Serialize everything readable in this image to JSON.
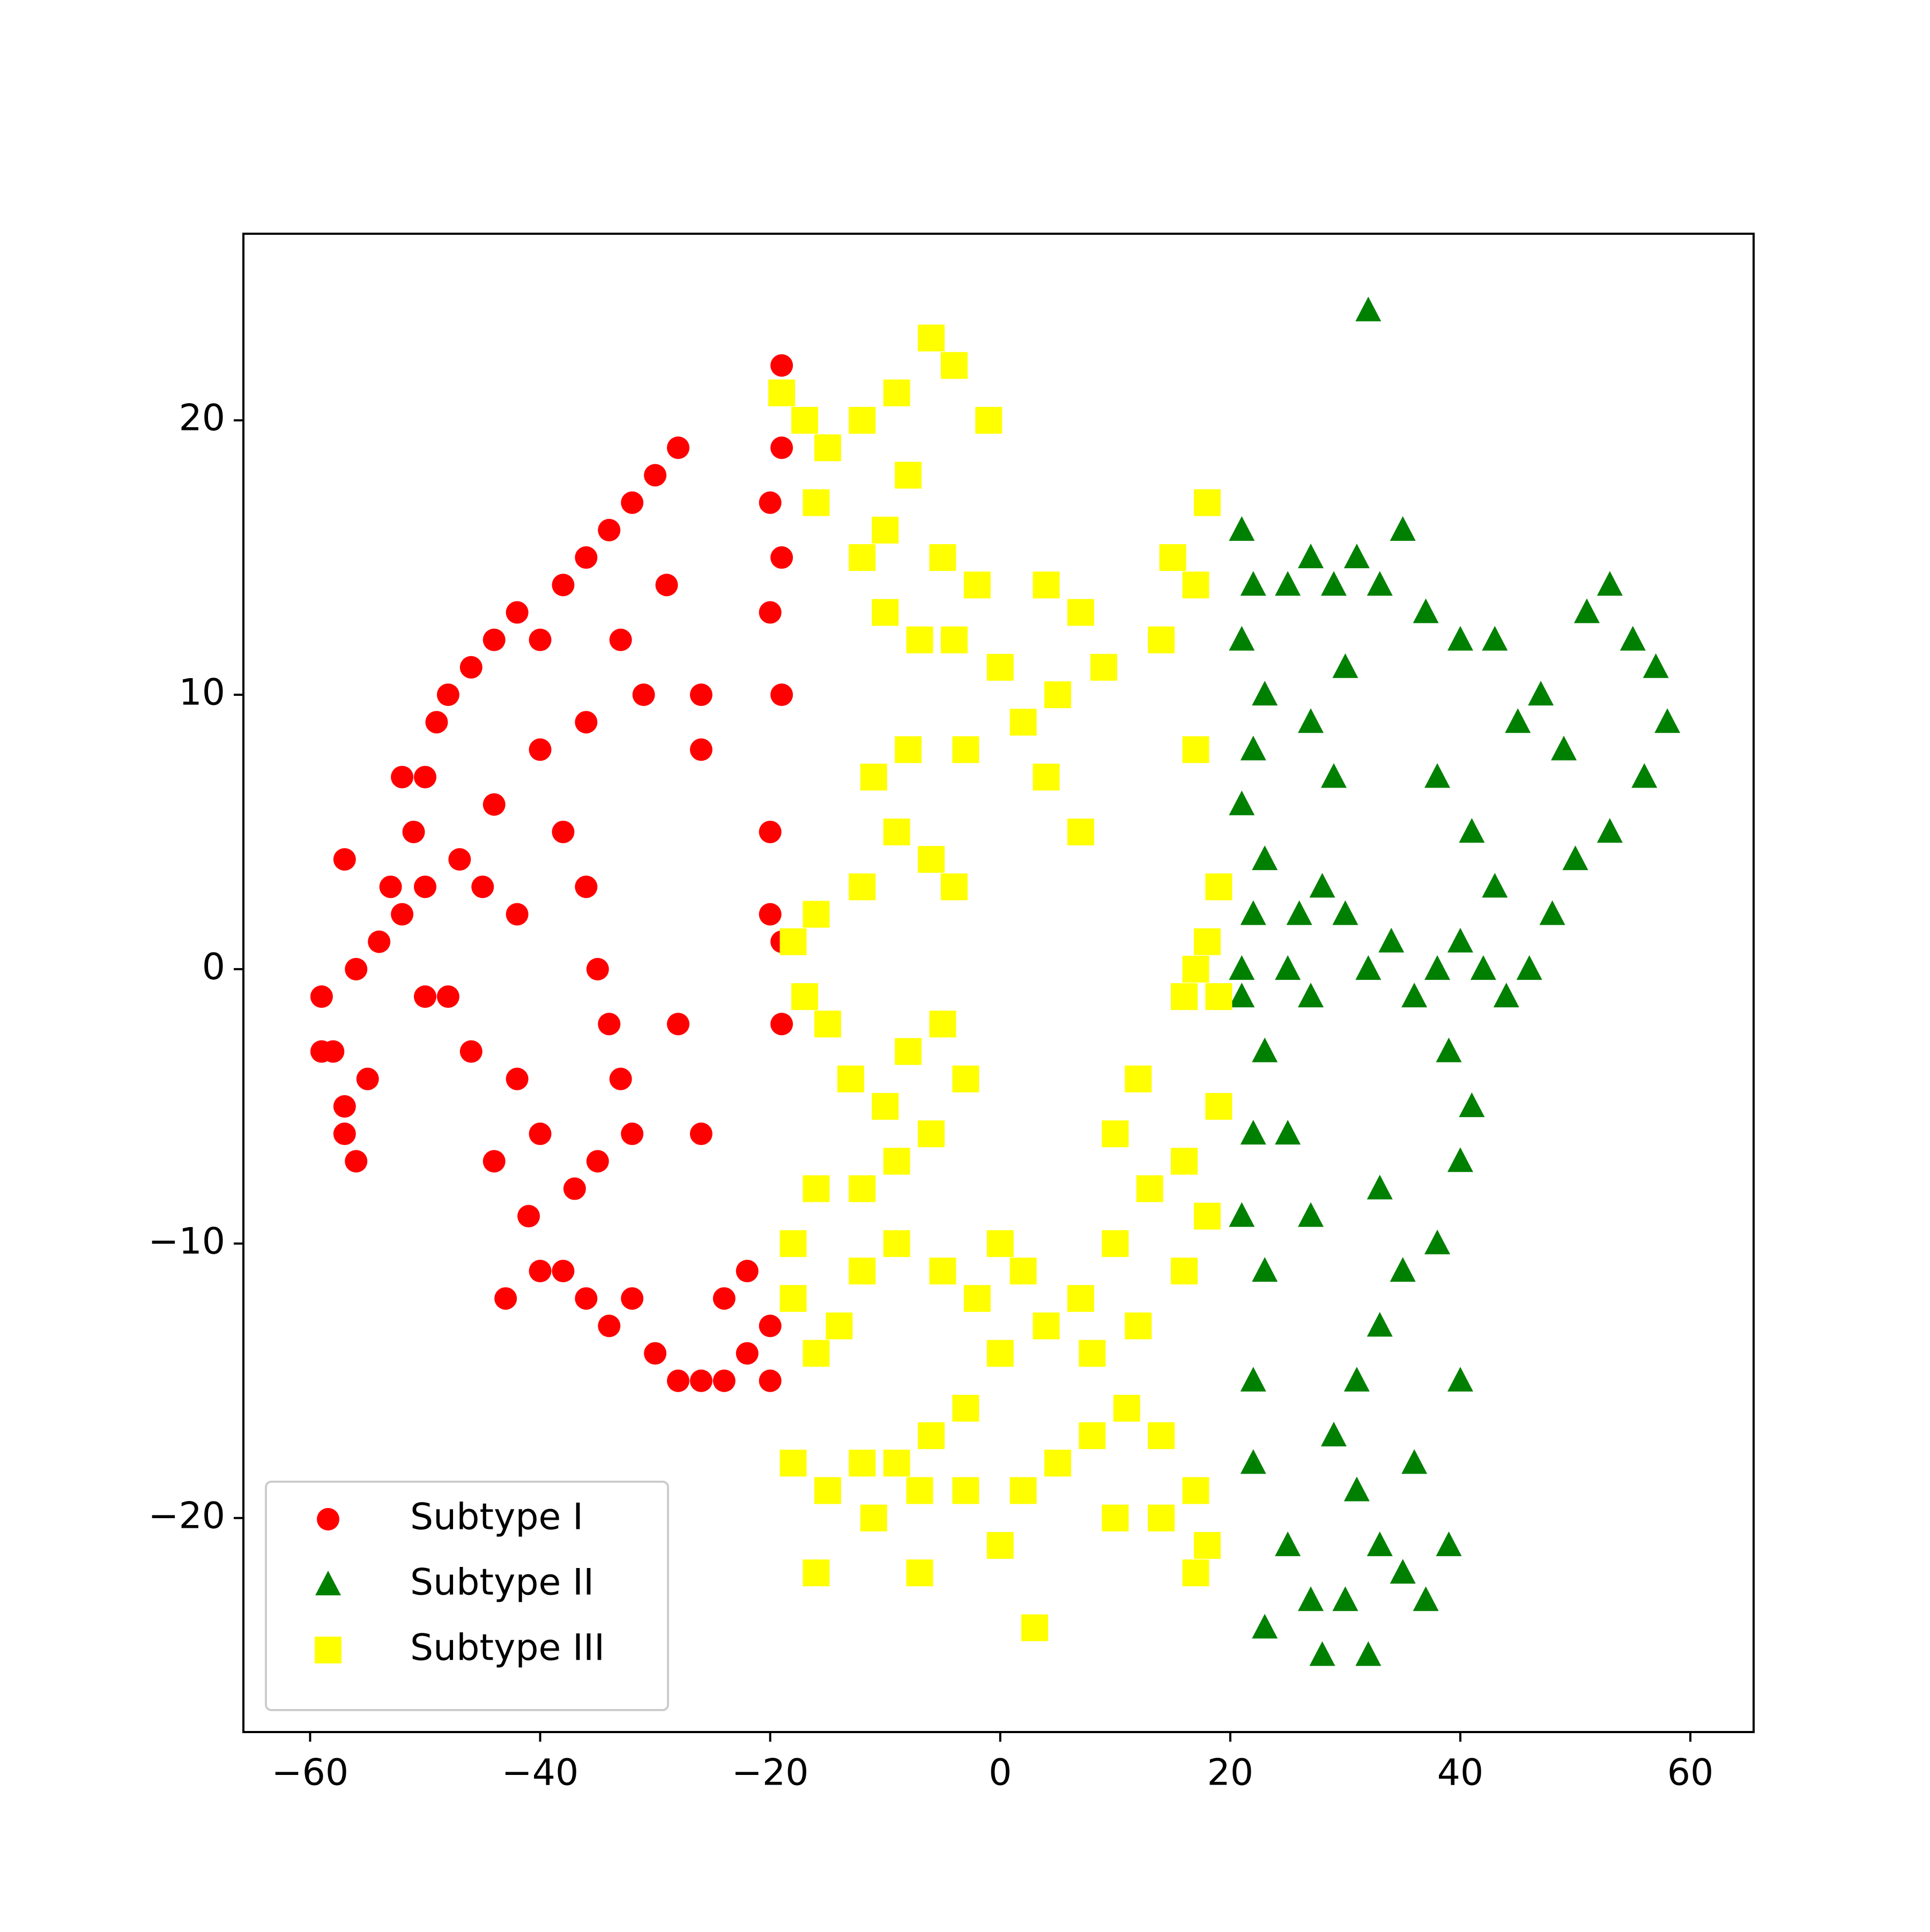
{
  "chart_data": {
    "type": "scatter",
    "xlim": [
      -65.8,
      65.5
    ],
    "ylim": [
      -27.8,
      26.8
    ],
    "xticks": [
      {
        "value": -60,
        "label": "−60"
      },
      {
        "value": -40,
        "label": "−40"
      },
      {
        "value": -20,
        "label": "−20"
      },
      0,
      20,
      40,
      60
    ],
    "yticks": [
      {
        "value": -20,
        "label": "−20"
      },
      {
        "value": -10,
        "label": "−10"
      },
      0,
      10,
      20
    ],
    "grid": false,
    "legend": "lower left",
    "series": [
      {
        "name": "Subtype I",
        "color": "#ff0000",
        "marker": "circle",
        "x": [
          -59,
          -58,
          -57,
          -56,
          -57,
          -55,
          -56,
          -54,
          -53,
          -52,
          -51,
          -50,
          -49,
          -48,
          -46,
          -44,
          -42,
          -40,
          -38,
          -36,
          -34,
          -32,
          -30,
          -28,
          -29,
          -33,
          -31,
          -36,
          -40,
          -44,
          -47,
          -50,
          -52,
          -45,
          -42,
          -48,
          -50,
          -46,
          -38,
          -36,
          -35,
          -34,
          -33,
          -32,
          -35,
          -37,
          -40,
          -42,
          -44,
          -41,
          -40,
          -38,
          -36,
          -34,
          -32,
          -30,
          -28,
          -26,
          -24,
          -22,
          -20,
          -22,
          -24,
          -20,
          -19,
          -19,
          -20,
          -20,
          -19,
          -20,
          -19,
          -20,
          -19,
          -19,
          -26,
          -26,
          -28,
          -26,
          -43,
          -57,
          -59
        ],
        "y": [
          -1,
          -3,
          -5,
          -7,
          -6,
          -4,
          0,
          1,
          3,
          2,
          5,
          7,
          9,
          10,
          11,
          12,
          13,
          12,
          14,
          15,
          16,
          17,
          18,
          19,
          14,
          12,
          10,
          9,
          8,
          6,
          4,
          3,
          7,
          3,
          2,
          -1,
          -1,
          -3,
          5,
          3,
          0,
          -2,
          -4,
          -6,
          -7,
          -8,
          -6,
          -4,
          -7,
          -9,
          -11,
          -11,
          -12,
          -13,
          -12,
          -14,
          -15,
          -15,
          -15,
          -14,
          -15,
          -11,
          -12,
          -13,
          -2,
          1,
          2,
          5,
          10,
          13,
          15,
          17,
          19,
          22,
          10,
          8,
          -2,
          -6,
          -12,
          4,
          -3
        ]
      },
      {
        "name": "Subtype II",
        "color": "#008000",
        "marker": "triangle",
        "x": [
          21,
          22,
          21,
          23,
          22,
          21,
          23,
          22,
          21,
          21,
          23,
          22,
          21,
          23,
          25,
          27,
          29,
          31,
          33,
          35,
          37,
          40,
          43,
          45,
          47,
          49,
          51,
          53,
          55,
          57,
          58,
          56,
          53,
          50,
          48,
          46,
          44,
          42,
          40,
          38,
          36,
          34,
          32,
          30,
          28,
          26,
          25,
          27,
          29,
          27,
          30,
          38,
          41,
          43,
          39,
          41,
          40,
          33,
          38,
          35,
          33,
          31,
          29,
          31,
          33,
          35,
          37,
          39,
          30,
          32,
          28,
          27,
          25,
          22,
          23,
          22,
          36,
          40,
          32,
          25,
          27
        ],
        "y": [
          16,
          14,
          12,
          10,
          8,
          6,
          4,
          2,
          0,
          -1,
          -3,
          -6,
          -9,
          -11,
          14,
          15,
          14,
          15,
          14,
          16,
          13,
          12,
          12,
          9,
          10,
          8,
          13,
          14,
          12,
          11,
          9,
          7,
          5,
          4,
          2,
          0,
          -1,
          0,
          1,
          0,
          -1,
          1,
          0,
          2,
          3,
          2,
          0,
          -1,
          7,
          9,
          11,
          7,
          5,
          3,
          -3,
          -5,
          -7,
          -8,
          -10,
          -11,
          -13,
          -15,
          -17,
          -19,
          -21,
          -22,
          -23,
          -21,
          -23,
          -25,
          -25,
          -23,
          -21,
          -18,
          -24,
          -15,
          -18,
          -15,
          24,
          -6,
          -9
        ]
      },
      {
        "name": "Subtype III",
        "color": "#ffff00",
        "marker": "square",
        "x": [
          -19,
          -17,
          -15,
          -12,
          -9,
          -6,
          -4,
          -1,
          -8,
          -10,
          -5,
          -2,
          -12,
          -16,
          -10,
          -7,
          -4,
          0,
          4,
          7,
          9,
          5,
          2,
          4,
          7,
          -3,
          -8,
          -11,
          -9,
          -6,
          -4,
          -12,
          -16,
          -18,
          -17,
          -15,
          -13,
          -10,
          -8,
          -5,
          -3,
          -6,
          -9,
          -12,
          -16,
          -18,
          -18,
          -16,
          -14,
          -12,
          -9,
          -5,
          -2,
          0,
          2,
          4,
          0,
          -3,
          -6,
          -9,
          -12,
          -15,
          -18,
          -16,
          -11,
          -7,
          -3,
          0,
          2,
          5,
          8,
          11,
          14,
          17,
          18,
          17,
          3,
          14,
          10,
          7,
          10,
          13,
          16,
          19,
          18,
          16,
          10,
          12,
          18,
          19,
          17,
          19,
          16,
          17,
          14,
          17,
          18,
          15,
          -7,
          12,
          8
        ],
        "y": [
          21,
          20,
          19,
          20,
          21,
          23,
          22,
          20,
          18,
          16,
          15,
          14,
          15,
          17,
          13,
          12,
          12,
          11,
          14,
          13,
          11,
          10,
          9,
          7,
          5,
          8,
          8,
          7,
          5,
          4,
          3,
          3,
          2,
          1,
          -1,
          -2,
          -4,
          -5,
          -3,
          -2,
          -4,
          -6,
          -7,
          -8,
          -8,
          -10,
          -12,
          -14,
          -13,
          -11,
          -10,
          -11,
          -12,
          -10,
          -11,
          -13,
          -14,
          -16,
          -17,
          -18,
          -18,
          -19,
          -18,
          -22,
          -20,
          -19,
          -19,
          -21,
          -19,
          -18,
          -17,
          -16,
          -17,
          -19,
          -21,
          -22,
          -24,
          -20,
          -20,
          -12,
          -10,
          -8,
          -7,
          -5,
          -9,
          -11,
          -6,
          -4,
          1,
          3,
          0,
          -1,
          -1,
          8,
          12,
          14,
          17,
          15,
          -22,
          -13,
          -14
        ]
      }
    ]
  }
}
